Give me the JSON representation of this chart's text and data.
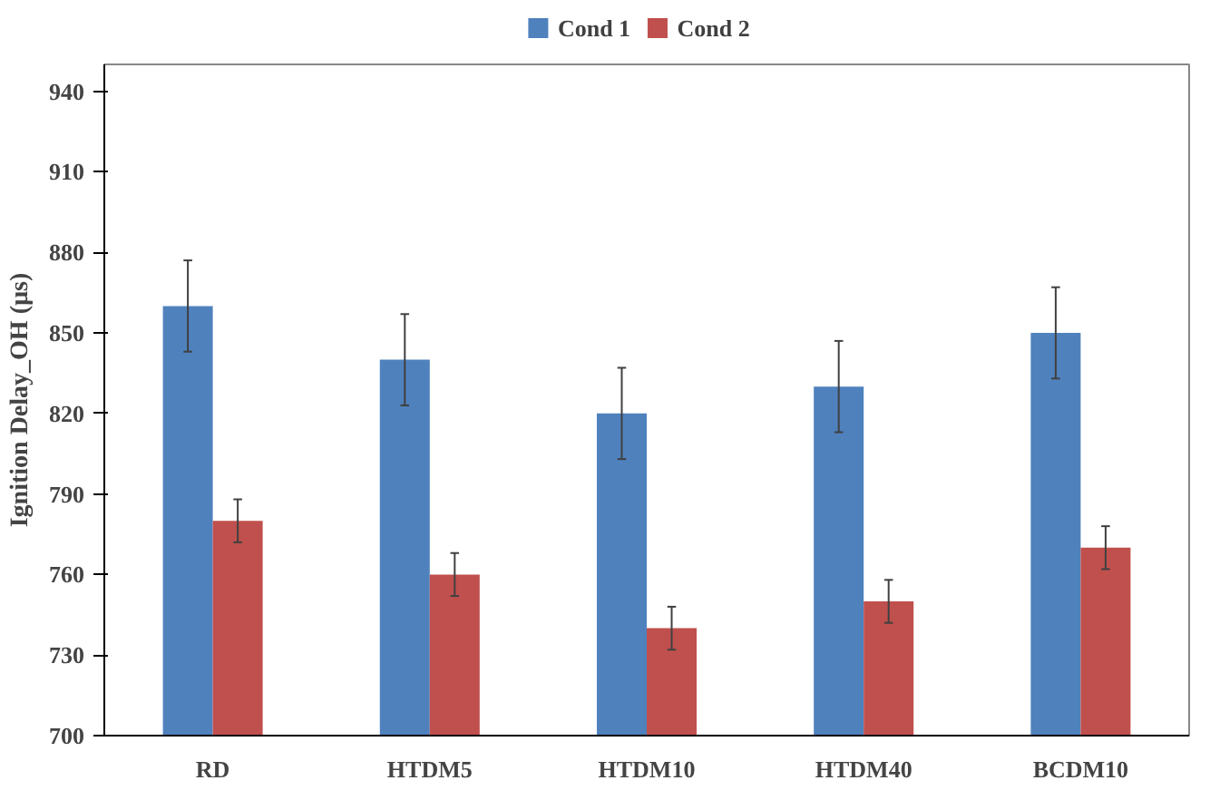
{
  "chart_data": {
    "type": "bar",
    "ylabel": "Ignition Delay_OH (µs)",
    "categories": [
      "RD",
      "HTDM5",
      "HTDM10",
      "HTDM40",
      "BCDM10"
    ],
    "series": [
      {
        "name": "Cond 1",
        "color": "#4f81bd",
        "values": [
          860,
          840,
          820,
          830,
          850
        ],
        "errors": [
          17,
          17,
          17,
          17,
          17
        ]
      },
      {
        "name": "Cond 2",
        "color": "#c0504d",
        "values": [
          780,
          760,
          740,
          750,
          770
        ],
        "errors": [
          8,
          8,
          8,
          8,
          8
        ]
      }
    ],
    "ylim": [
      700,
      950
    ],
    "yticks": [
      700,
      730,
      760,
      790,
      820,
      850,
      880,
      910,
      940
    ],
    "grid": false,
    "legend": "top"
  }
}
